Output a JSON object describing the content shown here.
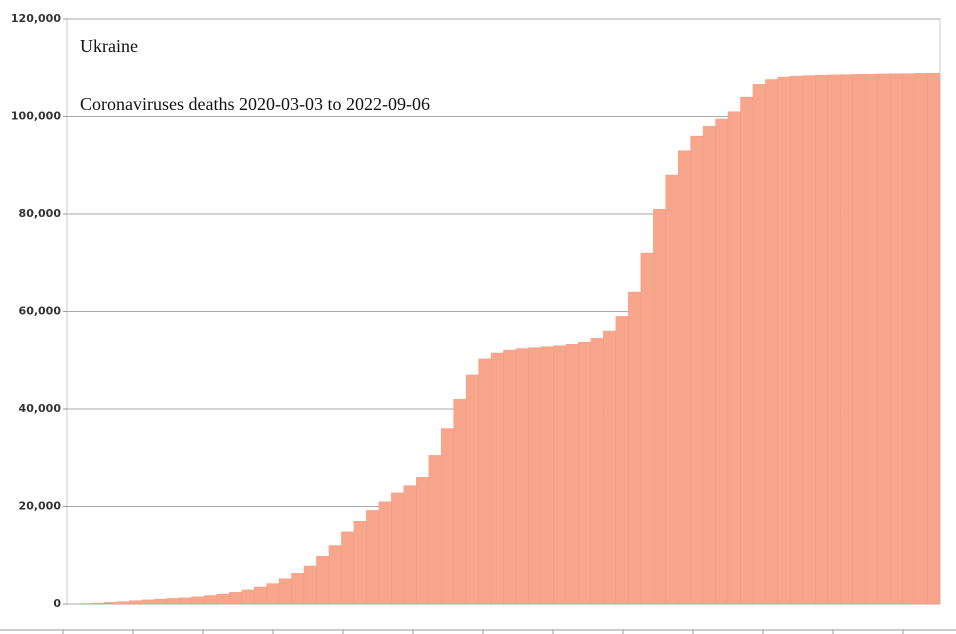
{
  "chart_data": {
    "type": "bar",
    "title": "Ukraine",
    "subtitle": "Coronaviruses deaths 2020-03-03 to 2022-09-06",
    "color": "#f7a68c",
    "values": [
      0,
      100,
      200,
      350,
      500,
      700,
      850,
      1000,
      1150,
      1300,
      1500,
      1750,
      2050,
      2400,
      2900,
      3500,
      4200,
      5200,
      6300,
      7800,
      9800,
      12000,
      14800,
      17000,
      19200,
      21000,
      22800,
      24300,
      26000,
      30500,
      36000,
      42000,
      47000,
      50300,
      51500,
      52100,
      52400,
      52600,
      52800,
      53000,
      53300,
      53700,
      54500,
      56000,
      59000,
      64000,
      72000,
      81000,
      88000,
      93000,
      96000,
      98000,
      99500,
      101000,
      104000,
      106600,
      107600,
      108100,
      108300,
      108400,
      108500,
      108550,
      108600,
      108650,
      108700,
      108750,
      108800,
      108800,
      108850,
      108900
    ],
    "ylim": [
      0,
      120000
    ],
    "yticks": [
      0,
      {
        "value": 20000,
        "label": "20,000"
      },
      {
        "value": 40000,
        "label": "40,000"
      },
      {
        "value": 60000,
        "label": "60,000"
      },
      {
        "value": 80000,
        "label": "80,000"
      },
      {
        "value": 100000,
        "label": "100,000"
      },
      {
        "value": 120000,
        "label": "120,000"
      }
    ],
    "grid": true
  }
}
